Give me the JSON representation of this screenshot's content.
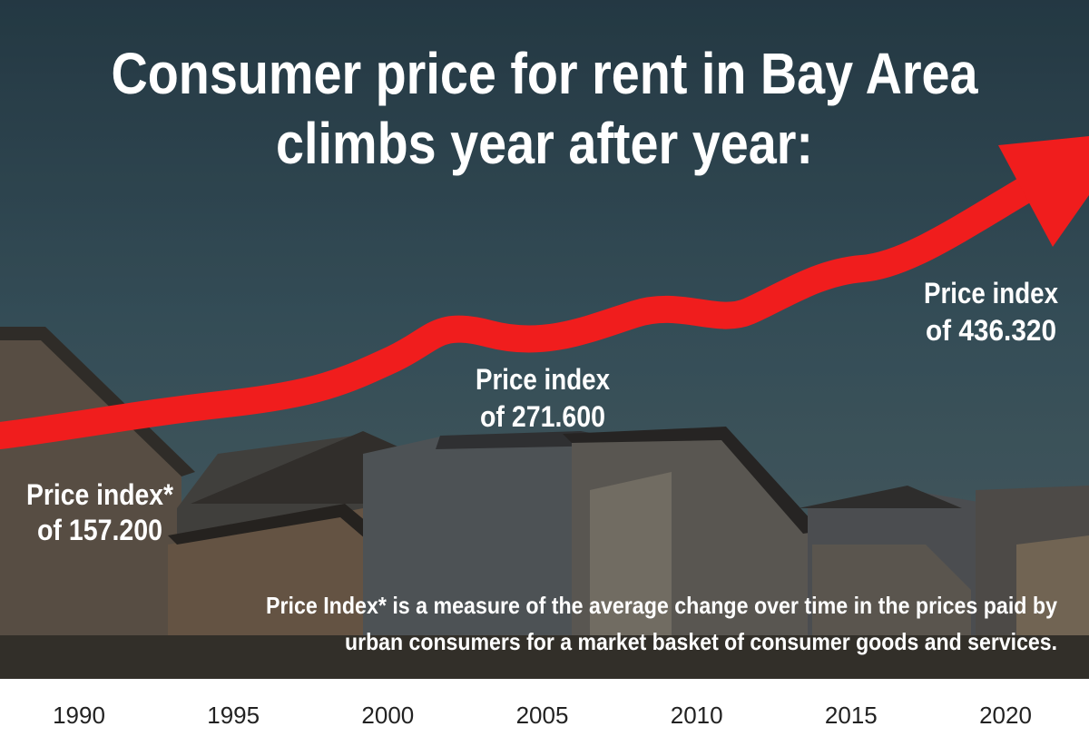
{
  "title": {
    "lines": [
      "Consumer price for rent in Bay Area",
      "climbs year after year:"
    ]
  },
  "annotations": [
    {
      "lines": [
        "Price index*",
        "of 157.200"
      ]
    },
    {
      "lines": [
        "Price index",
        "of 271.600"
      ]
    },
    {
      "lines": [
        "Price index",
        "of 436.320"
      ]
    }
  ],
  "footnote": {
    "lines": [
      "Price Index* is a measure of the average change over time in the prices paid by",
      "urban consumers for a market basket of consumer goods and services."
    ]
  },
  "years": [
    "1990",
    "1995",
    "2000",
    "2005",
    "2010",
    "2015",
    "2020"
  ]
}
